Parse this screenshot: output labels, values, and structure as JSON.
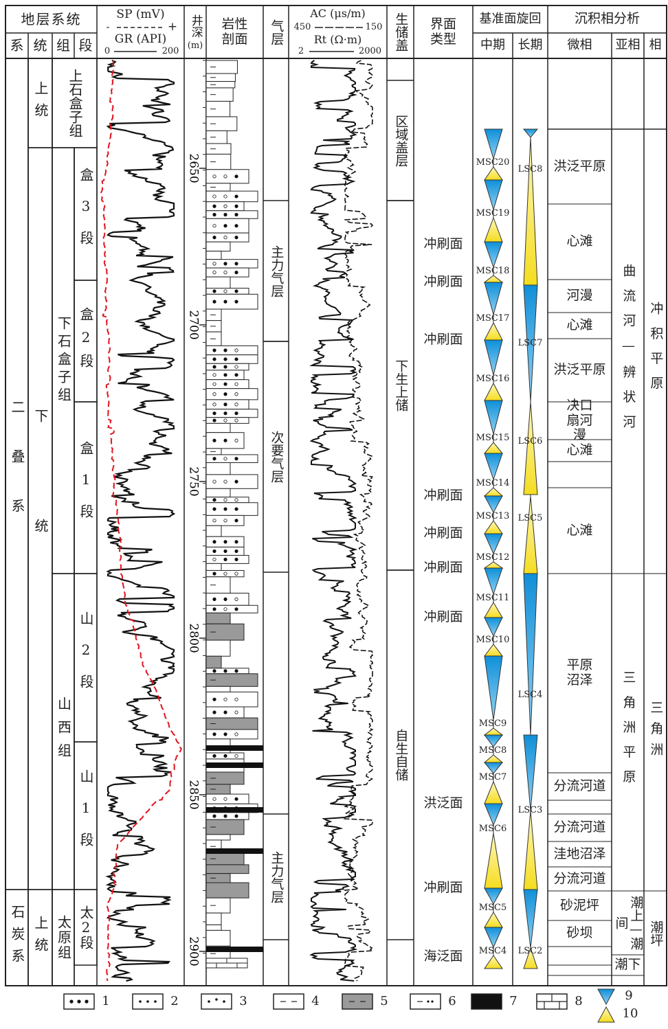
{
  "header": {
    "strata_system": "地层系统",
    "system": "系",
    "series": "统",
    "formation": "组",
    "member": "段",
    "sp": "SP (mV)",
    "sp_minus": "-",
    "sp_plus": "+",
    "gr": "GR (API)",
    "gr_min": "0",
    "gr_max": "200",
    "depth": "井深",
    "depth_unit": "(m)",
    "lithology": "岩性剖面",
    "gas": "气层",
    "ac": "AC (μs/m)",
    "ac_left": "450",
    "ac_right": "150",
    "rt": "Rt (Ω·m)",
    "rt_left": "2",
    "rt_right": "2000",
    "source_cap": "生储盖",
    "interface": "界面类型",
    "cycle": "基准面旋回",
    "mid": "中期",
    "long": "长期",
    "facies_analysis": "沉积相分析",
    "microfacies": "微相",
    "subfacies": "亚相",
    "facies": "相"
  },
  "strata": {
    "systems": [
      "二叠系",
      "石炭系"
    ],
    "series": [
      "上统",
      "下统",
      "上统"
    ],
    "formations": [
      "上石盒子组",
      "下石盒子组",
      "山西组",
      "太原组"
    ],
    "members": [
      "盒3段",
      "盒2段",
      "盒1段",
      "山2段",
      "山1段",
      "太2段"
    ]
  },
  "depth_ticks": [
    2650,
    2700,
    2750,
    2800,
    2850,
    2900
  ],
  "gas_layers": [
    "主力气层",
    "次要气层",
    "主力气层"
  ],
  "source_cap": [
    "区域盖层",
    "下生上储",
    "自生自储"
  ],
  "interfaces": [
    "冲刷面",
    "冲刷面",
    "冲刷面",
    "冲刷面",
    "冲刷面",
    "冲刷面",
    "冲刷面",
    "洪泛面",
    "冲刷面",
    "海泛面"
  ],
  "mid_cycles": [
    "MSC20",
    "MSC19",
    "MSC18",
    "MSC17",
    "MSC16",
    "MSC15",
    "MSC14",
    "MSC13",
    "MSC12",
    "MSC11",
    "MSC10",
    "MSC9",
    "MSC8",
    "MSC7",
    "MSC6",
    "MSC5",
    "MSC4"
  ],
  "long_cycles": [
    "LSC8",
    "LSC7",
    "LSC6",
    "LSC5",
    "LSC4",
    "LSC3",
    "LSC2"
  ],
  "microfacies": [
    "洪泛平原",
    "心滩",
    "河漫",
    "心滩",
    "洪泛平原",
    "决口扇河漫",
    "心滩",
    "心滩",
    "平原沼泽",
    "分流河道",
    "分流河道",
    "洼地沼泽",
    "分流河道",
    "砂泥坪",
    "砂坝"
  ],
  "subfacies": [
    "曲流河—辨状河",
    "三角洲平原",
    "潮上—潮间",
    "潮下"
  ],
  "facies": [
    "冲积平原",
    "三角洲",
    "潮坪"
  ],
  "legend": [
    1,
    2,
    3,
    4,
    5,
    6,
    7,
    8,
    9,
    10
  ]
}
